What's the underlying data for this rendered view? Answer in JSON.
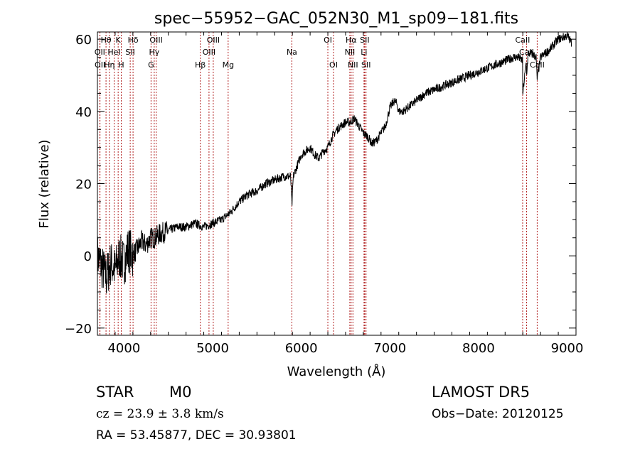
{
  "chart_data": {
    "type": "line",
    "title": "spec−55952−GAC_052N30_M1_sp09−181.fits",
    "xlabel": "Wavelength (Å)",
    "ylabel": "Flux (relative)",
    "xlim": [
      3700,
      9100
    ],
    "ylim": [
      -22,
      62
    ],
    "xticks": [
      4000,
      5000,
      6000,
      7000,
      8000,
      9000
    ],
    "yticks": [
      -20,
      0,
      20,
      40,
      60
    ],
    "grid": false,
    "series": [
      {
        "x": [
          3700,
          3750,
          3800,
          3850,
          3900,
          3950,
          4000,
          4050,
          4100,
          4150,
          4200,
          4250,
          4300,
          4350,
          4400,
          4500,
          4600,
          4700,
          4800,
          4900,
          5000,
          5100,
          5200,
          5300,
          5400,
          5500,
          5600,
          5700,
          5800,
          5850,
          5880,
          5895,
          5910,
          5940,
          6000,
          6100,
          6150,
          6200,
          6250,
          6300,
          6350,
          6400,
          6450,
          6500,
          6550,
          6600,
          6650,
          6700,
          6750,
          6800,
          6850,
          6900,
          6950,
          7000,
          7050,
          7080,
          7100,
          7150,
          7200,
          7300,
          7400,
          7500,
          7600,
          7700,
          7800,
          7900,
          8000,
          8100,
          8200,
          8300,
          8400,
          8450,
          8498,
          8500,
          8540,
          8542,
          8560,
          8600,
          8650,
          8662,
          8700,
          8800,
          8900,
          9000,
          9050
        ],
        "values": [
          0,
          -3,
          -6,
          -2,
          -4,
          0,
          -2,
          2,
          0,
          2,
          4,
          3,
          5,
          5,
          6,
          7,
          8,
          8,
          9,
          8,
          9,
          10,
          12,
          15,
          17,
          18,
          20,
          21,
          22,
          22,
          22,
          14,
          22,
          24,
          28,
          30,
          28,
          27,
          29,
          30,
          33,
          35,
          36,
          37,
          37,
          38,
          36,
          34,
          33,
          31,
          32,
          34,
          36,
          41,
          43,
          42,
          40,
          40,
          41,
          43,
          45,
          46,
          47,
          48,
          49,
          50,
          51,
          52,
          53,
          54,
          55,
          55,
          54,
          45,
          54,
          50,
          56,
          56,
          55,
          49,
          55,
          57,
          60,
          61,
          59
        ]
      }
    ],
    "spectral_lines": [
      {
        "label": "Hθ",
        "x": 3797,
        "row": 0
      },
      {
        "label": "OII",
        "x": 3727,
        "row": 1
      },
      {
        "label": "OII",
        "x": 3729,
        "row": 2
      },
      {
        "label": "Hη",
        "x": 3835,
        "row": 2
      },
      {
        "label": "HeI",
        "x": 3889,
        "row": 1
      },
      {
        "label": "K",
        "x": 3934,
        "row": 0
      },
      {
        "label": "H",
        "x": 3969,
        "row": 2
      },
      {
        "label": "SII",
        "x": 4070,
        "row": 1
      },
      {
        "label": "Hδ",
        "x": 4102,
        "row": 0
      },
      {
        "label": "OIII",
        "x": 4363,
        "row": 0
      },
      {
        "label": "Hγ",
        "x": 4341,
        "row": 1
      },
      {
        "label": "G",
        "x": 4305,
        "row": 2
      },
      {
        "label": "Hβ",
        "x": 4861,
        "row": 2
      },
      {
        "label": "OIII",
        "x": 5007,
        "row": 0
      },
      {
        "label": "OIII",
        "x": 4959,
        "row": 1
      },
      {
        "label": "Mg",
        "x": 5175,
        "row": 2
      },
      {
        "label": "Na",
        "x": 5894,
        "row": 1
      },
      {
        "label": "OI",
        "x": 6300,
        "row": 0
      },
      {
        "label": "OI",
        "x": 6364,
        "row": 2
      },
      {
        "label": "Hα",
        "x": 6563,
        "row": 0
      },
      {
        "label": "NII",
        "x": 6548,
        "row": 1
      },
      {
        "label": "NII",
        "x": 6583,
        "row": 2
      },
      {
        "label": "SII",
        "x": 6716,
        "row": 0
      },
      {
        "label": "Li",
        "x": 6708,
        "row": 1
      },
      {
        "label": "SII",
        "x": 6731,
        "row": 2
      },
      {
        "label": "CaII",
        "x": 8498,
        "row": 0
      },
      {
        "label": "CaII",
        "x": 8542,
        "row": 1
      },
      {
        "label": "CaII",
        "x": 8662,
        "row": 2
      }
    ]
  },
  "info": {
    "class": "STAR",
    "subclass": "M0",
    "survey": "LAMOST DR5",
    "cz": "cz = 23.9 ± 3.8 km/s",
    "obs_date": "Obs−Date: 20120125",
    "coords": "RA =  53.45877, DEC =  30.93801"
  }
}
